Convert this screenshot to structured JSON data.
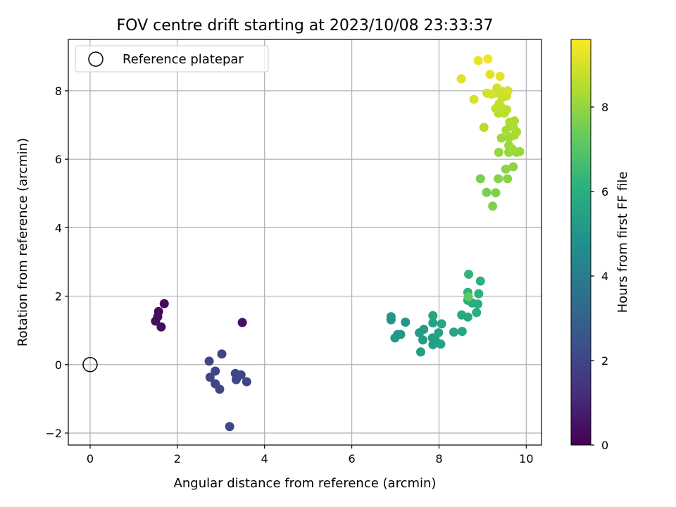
{
  "chart_data": {
    "type": "scatter",
    "title": "FOV centre drift starting at 2023/10/08 23:33:37",
    "xlabel": "Angular distance from reference (arcmin)",
    "ylabel": "Rotation from reference (arcmin)",
    "xlim": [
      -0.5,
      10.35
    ],
    "ylim": [
      -2.35,
      9.5
    ],
    "xticks": [
      0,
      2,
      4,
      6,
      8,
      10
    ],
    "yticks": [
      -2,
      0,
      2,
      4,
      6,
      8
    ],
    "grid": true,
    "legend": {
      "position": "top-left",
      "entries": [
        "Reference platepar"
      ]
    },
    "reference_point": {
      "x": 0,
      "y": 0
    },
    "colorbar": {
      "label": "Hours from first FF file",
      "range": [
        0,
        9.6
      ],
      "ticks": [
        0,
        2,
        4,
        6,
        8
      ],
      "colormap": "viridis"
    },
    "points": [
      {
        "x": 1.7,
        "y": 1.78,
        "c": 0.3
      },
      {
        "x": 1.57,
        "y": 1.55,
        "c": 0.3
      },
      {
        "x": 1.55,
        "y": 1.4,
        "c": 0.3
      },
      {
        "x": 1.5,
        "y": 1.27,
        "c": 0.3
      },
      {
        "x": 1.63,
        "y": 1.1,
        "c": 0.3
      },
      {
        "x": 3.49,
        "y": 1.23,
        "c": 0.4
      },
      {
        "x": 2.73,
        "y": 0.1,
        "c": 2.0
      },
      {
        "x": 3.02,
        "y": 0.31,
        "c": 2.0
      },
      {
        "x": 2.87,
        "y": -0.19,
        "c": 2.0
      },
      {
        "x": 2.75,
        "y": -0.37,
        "c": 2.0
      },
      {
        "x": 2.87,
        "y": -0.56,
        "c": 2.0
      },
      {
        "x": 2.97,
        "y": -0.72,
        "c": 2.0
      },
      {
        "x": 3.33,
        "y": -0.26,
        "c": 2.0
      },
      {
        "x": 3.46,
        "y": -0.3,
        "c": 2.0
      },
      {
        "x": 3.35,
        "y": -0.44,
        "c": 2.0
      },
      {
        "x": 3.59,
        "y": -0.5,
        "c": 2.0
      },
      {
        "x": 3.2,
        "y": -1.81,
        "c": 2.1
      },
      {
        "x": 6.9,
        "y": 1.4,
        "c": 5.0
      },
      {
        "x": 6.9,
        "y": 1.31,
        "c": 5.0
      },
      {
        "x": 7.23,
        "y": 1.24,
        "c": 5.0
      },
      {
        "x": 7.05,
        "y": 0.88,
        "c": 5.1
      },
      {
        "x": 7.12,
        "y": 0.88,
        "c": 5.1
      },
      {
        "x": 6.99,
        "y": 0.78,
        "c": 5.1
      },
      {
        "x": 7.55,
        "y": 0.93,
        "c": 5.2
      },
      {
        "x": 7.65,
        "y": 1.03,
        "c": 5.2
      },
      {
        "x": 7.63,
        "y": 0.72,
        "c": 5.3
      },
      {
        "x": 7.58,
        "y": 0.37,
        "c": 5.3
      },
      {
        "x": 7.85,
        "y": 0.78,
        "c": 5.3
      },
      {
        "x": 7.92,
        "y": 0.7,
        "c": 5.4
      },
      {
        "x": 7.86,
        "y": 0.58,
        "c": 5.4
      },
      {
        "x": 8.04,
        "y": 0.6,
        "c": 5.5
      },
      {
        "x": 7.99,
        "y": 0.93,
        "c": 5.5
      },
      {
        "x": 7.86,
        "y": 1.22,
        "c": 5.5
      },
      {
        "x": 7.86,
        "y": 1.43,
        "c": 5.6
      },
      {
        "x": 8.06,
        "y": 1.19,
        "c": 5.6
      },
      {
        "x": 8.34,
        "y": 0.95,
        "c": 5.6
      },
      {
        "x": 8.53,
        "y": 0.97,
        "c": 5.7
      },
      {
        "x": 8.52,
        "y": 1.45,
        "c": 5.8
      },
      {
        "x": 8.66,
        "y": 1.39,
        "c": 5.8
      },
      {
        "x": 8.66,
        "y": 1.88,
        "c": 5.9
      },
      {
        "x": 8.76,
        "y": 1.8,
        "c": 6.0
      },
      {
        "x": 8.89,
        "y": 1.77,
        "c": 6.0
      },
      {
        "x": 8.86,
        "y": 1.52,
        "c": 6.0
      },
      {
        "x": 8.66,
        "y": 2.11,
        "c": 6.1
      },
      {
        "x": 8.91,
        "y": 2.07,
        "c": 6.1
      },
      {
        "x": 8.95,
        "y": 2.44,
        "c": 6.1
      },
      {
        "x": 8.68,
        "y": 2.64,
        "c": 6.2
      },
      {
        "x": 8.67,
        "y": 1.98,
        "c": 7.2
      },
      {
        "x": 8.95,
        "y": 5.43,
        "c": 7.6
      },
      {
        "x": 9.09,
        "y": 5.03,
        "c": 7.6
      },
      {
        "x": 9.3,
        "y": 5.02,
        "c": 7.7
      },
      {
        "x": 9.23,
        "y": 4.63,
        "c": 7.7
      },
      {
        "x": 9.36,
        "y": 5.43,
        "c": 7.8
      },
      {
        "x": 9.57,
        "y": 5.43,
        "c": 7.8
      },
      {
        "x": 9.53,
        "y": 5.71,
        "c": 7.9
      },
      {
        "x": 9.7,
        "y": 5.78,
        "c": 7.9
      },
      {
        "x": 9.37,
        "y": 6.2,
        "c": 8.0
      },
      {
        "x": 9.6,
        "y": 6.2,
        "c": 8.0
      },
      {
        "x": 9.78,
        "y": 6.2,
        "c": 8.1
      },
      {
        "x": 9.85,
        "y": 6.22,
        "c": 8.1
      },
      {
        "x": 9.6,
        "y": 6.4,
        "c": 8.1
      },
      {
        "x": 9.68,
        "y": 6.3,
        "c": 8.2
      },
      {
        "x": 9.43,
        "y": 6.62,
        "c": 8.2
      },
      {
        "x": 9.61,
        "y": 6.63,
        "c": 8.2
      },
      {
        "x": 9.73,
        "y": 6.7,
        "c": 8.3
      },
      {
        "x": 9.78,
        "y": 6.8,
        "c": 8.3
      },
      {
        "x": 9.54,
        "y": 6.85,
        "c": 8.3
      },
      {
        "x": 9.7,
        "y": 6.95,
        "c": 8.4
      },
      {
        "x": 9.62,
        "y": 7.08,
        "c": 8.4
      },
      {
        "x": 9.73,
        "y": 7.12,
        "c": 8.4
      },
      {
        "x": 9.03,
        "y": 6.93,
        "c": 8.5
      },
      {
        "x": 9.36,
        "y": 7.35,
        "c": 8.6
      },
      {
        "x": 9.5,
        "y": 7.35,
        "c": 8.6
      },
      {
        "x": 9.55,
        "y": 7.45,
        "c": 8.6
      },
      {
        "x": 9.3,
        "y": 7.48,
        "c": 8.7
      },
      {
        "x": 9.43,
        "y": 7.52,
        "c": 8.7
      },
      {
        "x": 9.38,
        "y": 7.62,
        "c": 8.7
      },
      {
        "x": 9.45,
        "y": 7.8,
        "c": 8.8
      },
      {
        "x": 9.55,
        "y": 7.85,
        "c": 8.8
      },
      {
        "x": 9.3,
        "y": 7.93,
        "c": 8.8
      },
      {
        "x": 9.45,
        "y": 7.98,
        "c": 8.9
      },
      {
        "x": 9.33,
        "y": 8.08,
        "c": 8.9
      },
      {
        "x": 9.1,
        "y": 7.93,
        "c": 8.9
      },
      {
        "x": 9.2,
        "y": 7.9,
        "c": 9.0
      },
      {
        "x": 9.58,
        "y": 8.0,
        "c": 9.0
      },
      {
        "x": 8.8,
        "y": 7.75,
        "c": 9.0
      },
      {
        "x": 8.51,
        "y": 8.35,
        "c": 9.1
      },
      {
        "x": 9.17,
        "y": 8.48,
        "c": 9.2
      },
      {
        "x": 9.4,
        "y": 8.42,
        "c": 9.2
      },
      {
        "x": 8.9,
        "y": 8.88,
        "c": 9.3
      },
      {
        "x": 9.12,
        "y": 8.93,
        "c": 9.4
      }
    ]
  }
}
